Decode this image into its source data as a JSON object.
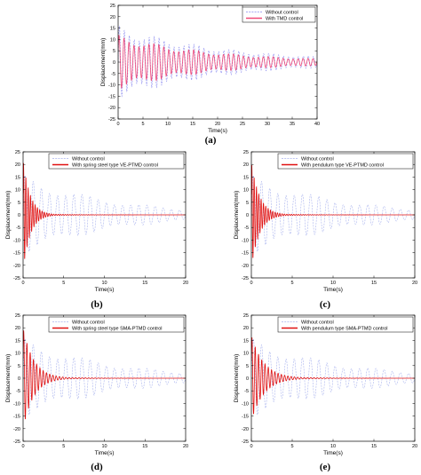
{
  "chart_data": [
    {
      "panel": "(a)",
      "type": "line",
      "xlabel": "Time(s)",
      "ylabel": "Displacement(mm)",
      "xlim": [
        0,
        40
      ],
      "ylim": [
        -25,
        25
      ],
      "xticks": [
        0,
        5,
        10,
        15,
        20,
        25,
        30,
        35,
        40
      ],
      "yticks": [
        -25,
        -20,
        -15,
        -10,
        -5,
        0,
        5,
        10,
        15,
        20,
        25
      ],
      "legend_position": "top-right",
      "series": [
        {
          "name": "Without control",
          "color": "#8c8cf0",
          "style": "dashed",
          "initial_amplitude": 16,
          "final_amplitude": 2.5,
          "cycles_per_second": 1.0
        },
        {
          "name": "With TMD control",
          "color": "#f04a78",
          "style": "solid",
          "initial_amplitude": 12,
          "final_amplitude": 1.5,
          "cycles_per_second": 1.0
        }
      ]
    },
    {
      "panel": "(b)",
      "type": "line",
      "xlabel": "Time(s)",
      "ylabel": "Displacement(mm)",
      "xlim": [
        0,
        20
      ],
      "ylim": [
        -25,
        25
      ],
      "xticks": [
        0,
        5,
        10,
        15,
        20
      ],
      "yticks": [
        -25,
        -20,
        -15,
        -10,
        -5,
        0,
        5,
        10,
        15,
        20,
        25
      ],
      "legend_position": "top-right",
      "series": [
        {
          "name": "Without control",
          "color": "#a9b3ee",
          "style": "dashed",
          "initial_amplitude": 16,
          "final_amplitude": 2.5,
          "cycles_per_second": 1.0
        },
        {
          "name": "With spring steel type VE-PTMD control",
          "color": "#e01010",
          "style": "solid",
          "initial_amplitude": 22,
          "final_amplitude": 0,
          "cycles_per_second": 3.5,
          "settle_time": 4
        }
      ]
    },
    {
      "panel": "(c)",
      "type": "line",
      "xlabel": "Time(s)",
      "ylabel": "Displacement(mm)",
      "xlim": [
        0,
        20
      ],
      "ylim": [
        -25,
        25
      ],
      "xticks": [
        0,
        5,
        10,
        15,
        20
      ],
      "yticks": [
        -25,
        -20,
        -15,
        -10,
        -5,
        0,
        5,
        10,
        15,
        20,
        25
      ],
      "legend_position": "top-right",
      "series": [
        {
          "name": "Without control",
          "color": "#a9b3ee",
          "style": "dashed",
          "initial_amplitude": 16,
          "final_amplitude": 2.5,
          "cycles_per_second": 1.0
        },
        {
          "name": "With pendulum type VE-PTMD control",
          "color": "#e01010",
          "style": "solid",
          "initial_amplitude": 21,
          "final_amplitude": 0,
          "cycles_per_second": 3.5,
          "settle_time": 4.5
        }
      ]
    },
    {
      "panel": "(d)",
      "type": "line",
      "xlabel": "Time(s)",
      "ylabel": "Displacement(mm)",
      "xlim": [
        0,
        20
      ],
      "ylim": [
        -25,
        25
      ],
      "xticks": [
        0,
        5,
        10,
        15,
        20
      ],
      "yticks": [
        -25,
        -20,
        -15,
        -10,
        -5,
        0,
        5,
        10,
        15,
        20,
        25
      ],
      "legend_position": "top-right",
      "series": [
        {
          "name": "Without control",
          "color": "#a9b3ee",
          "style": "dashed",
          "initial_amplitude": 16,
          "final_amplitude": 2.5,
          "cycles_per_second": 1.0
        },
        {
          "name": "With spring steel type SMA-PTMD control",
          "color": "#e01010",
          "style": "solid",
          "initial_amplitude": 20,
          "final_amplitude": 0,
          "cycles_per_second": 2.5,
          "settle_time": 6
        }
      ]
    },
    {
      "panel": "(e)",
      "type": "line",
      "xlabel": "Time(s)",
      "ylabel": "Displacement(mm)",
      "xlim": [
        0,
        20
      ],
      "ylim": [
        -25,
        25
      ],
      "xticks": [
        0,
        5,
        10,
        15,
        20
      ],
      "yticks": [
        -25,
        -20,
        -15,
        -10,
        -5,
        0,
        5,
        10,
        15,
        20,
        25
      ],
      "legend_position": "top-right",
      "series": [
        {
          "name": "Without control",
          "color": "#a9b3ee",
          "style": "dashed",
          "initial_amplitude": 16,
          "final_amplitude": 2.5,
          "cycles_per_second": 1.0
        },
        {
          "name": "With pendulum type SMA-PTMD control",
          "color": "#e01010",
          "style": "solid",
          "initial_amplitude": 17,
          "final_amplitude": 0,
          "cycles_per_second": 2.5,
          "settle_time": 7
        }
      ]
    }
  ]
}
